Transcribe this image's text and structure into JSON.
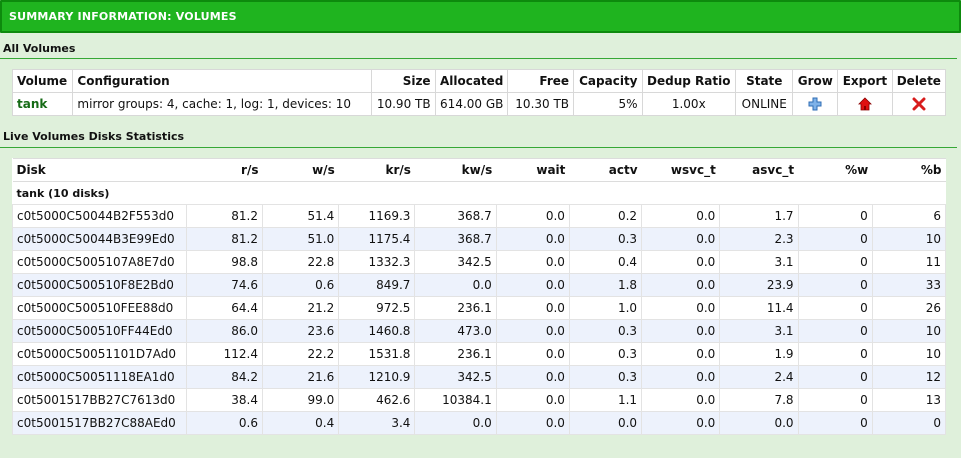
{
  "header": {
    "title": "SUMMARY INFORMATION: VOLUMES"
  },
  "all_volumes": {
    "section_title": "All Volumes",
    "columns": [
      "Volume",
      "Configuration",
      "Size",
      "Allocated",
      "Free",
      "Capacity",
      "Dedup Ratio",
      "State",
      "Grow",
      "Export",
      "Delete"
    ],
    "rows": [
      {
        "volume": "tank",
        "configuration": "mirror groups: 4, cache: 1, log: 1, devices: 10",
        "size": "10.90 TB",
        "allocated": "614.00 GB",
        "free": "10.30 TB",
        "capacity": "5%",
        "dedup_ratio": "1.00x",
        "state": "ONLINE",
        "grow_icon": "plus-icon",
        "export_icon": "home-icon",
        "delete_icon": "x-icon"
      }
    ]
  },
  "live_stats": {
    "section_title": "Live Volumes Disks Statistics",
    "columns": [
      "Disk",
      "r/s",
      "w/s",
      "kr/s",
      "kw/s",
      "wait",
      "actv",
      "wsvc_t",
      "asvc_t",
      "%w",
      "%b"
    ],
    "pool_label": "tank (10 disks)",
    "rows": [
      [
        "c0t5000C50044B2F553d0",
        "81.2",
        "51.4",
        "1169.3",
        "368.7",
        "0.0",
        "0.2",
        "0.0",
        "1.7",
        "0",
        "6"
      ],
      [
        "c0t5000C50044B3E99Ed0",
        "81.2",
        "51.0",
        "1175.4",
        "368.7",
        "0.0",
        "0.3",
        "0.0",
        "2.3",
        "0",
        "10"
      ],
      [
        "c0t5000C5005107A8E7d0",
        "98.8",
        "22.8",
        "1332.3",
        "342.5",
        "0.0",
        "0.4",
        "0.0",
        "3.1",
        "0",
        "11"
      ],
      [
        "c0t5000C500510F8E2Bd0",
        "74.6",
        "0.6",
        "849.7",
        "0.0",
        "0.0",
        "1.8",
        "0.0",
        "23.9",
        "0",
        "33"
      ],
      [
        "c0t5000C500510FEE88d0",
        "64.4",
        "21.2",
        "972.5",
        "236.1",
        "0.0",
        "1.0",
        "0.0",
        "11.4",
        "0",
        "26"
      ],
      [
        "c0t5000C500510FF44Ed0",
        "86.0",
        "23.6",
        "1460.8",
        "473.0",
        "0.0",
        "0.3",
        "0.0",
        "3.1",
        "0",
        "10"
      ],
      [
        "c0t5000C50051101D7Ad0",
        "112.4",
        "22.2",
        "1531.8",
        "236.1",
        "0.0",
        "0.3",
        "0.0",
        "1.9",
        "0",
        "10"
      ],
      [
        "c0t5000C50051118EA1d0",
        "84.2",
        "21.6",
        "1210.9",
        "342.5",
        "0.0",
        "0.3",
        "0.0",
        "2.4",
        "0",
        "12"
      ],
      [
        "c0t5001517BB27C7613d0",
        "38.4",
        "99.0",
        "462.6",
        "10384.1",
        "0.0",
        "1.1",
        "0.0",
        "7.8",
        "0",
        "13"
      ],
      [
        "c0t5001517BB27C88AEd0",
        "0.6",
        "0.4",
        "3.4",
        "0.0",
        "0.0",
        "0.0",
        "0.0",
        "0.0",
        "0",
        "0"
      ]
    ]
  },
  "colors": {
    "banner": "#1fb41f",
    "background": "#dff0db",
    "volume_link": "#166b16",
    "alt_row": "#edf2fc"
  }
}
